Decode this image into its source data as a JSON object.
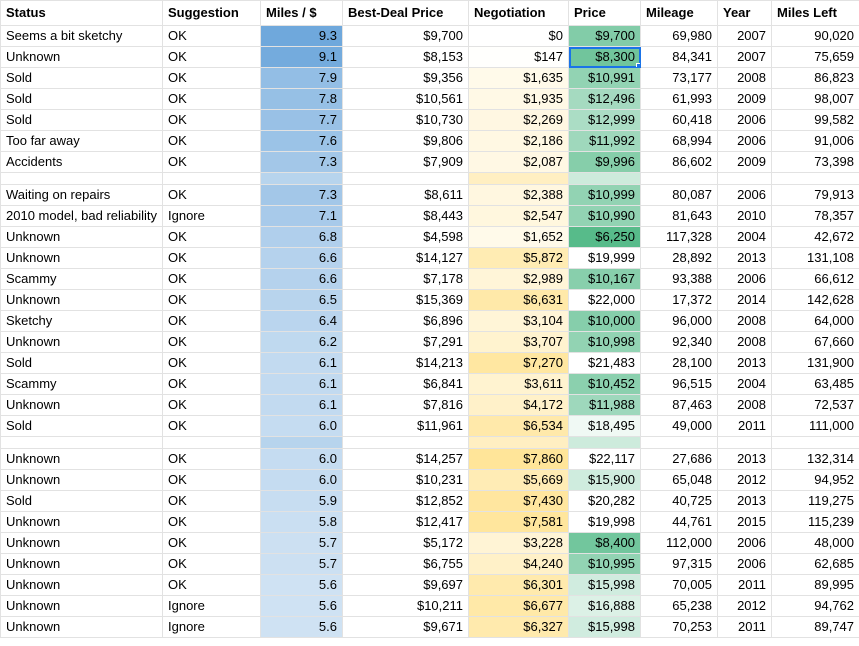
{
  "colors": {
    "mps_scale": [
      "#6fa8dc",
      "#cfe2f3"
    ],
    "neg_scale": [
      "#ffffff",
      "#ffe599"
    ],
    "price_scale": [
      "#57bb8a",
      "#ffffff"
    ],
    "selection": "#1a73e8"
  },
  "headers": [
    "Status",
    "Suggestion",
    "Miles / $",
    "Best-Deal Price",
    "Negotiation",
    "Price",
    "Mileage",
    "Year",
    "Miles Left"
  ],
  "rows": [
    {
      "status": "Seems a bit sketchy",
      "suggestion": "OK",
      "mps": "9.3",
      "best": "$9,700",
      "neg": "$0",
      "price": "$9,700",
      "mileage": "69,980",
      "year": "2007",
      "left": "90,020"
    },
    {
      "status": "Unknown",
      "suggestion": "OK",
      "mps": "9.1",
      "best": "$8,153",
      "neg": "$147",
      "price": "$8,300",
      "mileage": "84,341",
      "year": "2007",
      "left": "75,659"
    },
    {
      "status": "Sold",
      "suggestion": "OK",
      "mps": "7.9",
      "best": "$9,356",
      "neg": "$1,635",
      "price": "$10,991",
      "mileage": "73,177",
      "year": "2008",
      "left": "86,823"
    },
    {
      "status": "Sold",
      "suggestion": "OK",
      "mps": "7.8",
      "best": "$10,561",
      "neg": "$1,935",
      "price": "$12,496",
      "mileage": "61,993",
      "year": "2009",
      "left": "98,007"
    },
    {
      "status": "Sold",
      "suggestion": "OK",
      "mps": "7.7",
      "best": "$10,730",
      "neg": "$2,269",
      "price": "$12,999",
      "mileage": "60,418",
      "year": "2006",
      "left": "99,582"
    },
    {
      "status": "Too far away",
      "suggestion": "OK",
      "mps": "7.6",
      "best": "$9,806",
      "neg": "$2,186",
      "price": "$11,992",
      "mileage": "68,994",
      "year": "2006",
      "left": "91,006"
    },
    {
      "status": "Accidents",
      "suggestion": "OK",
      "mps": "7.3",
      "best": "$7,909",
      "neg": "$2,087",
      "price": "$9,996",
      "mileage": "86,602",
      "year": "2009",
      "left": "73,398"
    },
    {
      "spacer": true
    },
    {
      "status": "Waiting on repairs",
      "suggestion": "OK",
      "mps": "7.3",
      "best": "$8,611",
      "neg": "$2,388",
      "price": "$10,999",
      "mileage": "80,087",
      "year": "2006",
      "left": "79,913"
    },
    {
      "status": "2010 model, bad reliability",
      "suggestion": "Ignore",
      "mps": "7.1",
      "best": "$8,443",
      "neg": "$2,547",
      "price": "$10,990",
      "mileage": "81,643",
      "year": "2010",
      "left": "78,357"
    },
    {
      "status": "Unknown",
      "suggestion": "OK",
      "mps": "6.8",
      "best": "$4,598",
      "neg": "$1,652",
      "price": "$6,250",
      "mileage": "117,328",
      "year": "2004",
      "left": "42,672"
    },
    {
      "status": "Unknown",
      "suggestion": "OK",
      "mps": "6.6",
      "best": "$14,127",
      "neg": "$5,872",
      "price": "$19,999",
      "mileage": "28,892",
      "year": "2013",
      "left": "131,108"
    },
    {
      "status": "Scammy",
      "suggestion": "OK",
      "mps": "6.6",
      "best": "$7,178",
      "neg": "$2,989",
      "price": "$10,167",
      "mileage": "93,388",
      "year": "2006",
      "left": "66,612"
    },
    {
      "status": "Unknown",
      "suggestion": "OK",
      "mps": "6.5",
      "best": "$15,369",
      "neg": "$6,631",
      "price": "$22,000",
      "mileage": "17,372",
      "year": "2014",
      "left": "142,628"
    },
    {
      "status": "Sketchy",
      "suggestion": "OK",
      "mps": "6.4",
      "best": "$6,896",
      "neg": "$3,104",
      "price": "$10,000",
      "mileage": "96,000",
      "year": "2008",
      "left": "64,000"
    },
    {
      "status": "Unknown",
      "suggestion": "OK",
      "mps": "6.2",
      "best": "$7,291",
      "neg": "$3,707",
      "price": "$10,998",
      "mileage": "92,340",
      "year": "2008",
      "left": "67,660"
    },
    {
      "status": "Sold",
      "suggestion": "OK",
      "mps": "6.1",
      "best": "$14,213",
      "neg": "$7,270",
      "price": "$21,483",
      "mileage": "28,100",
      "year": "2013",
      "left": "131,900"
    },
    {
      "status": "Scammy",
      "suggestion": "OK",
      "mps": "6.1",
      "best": "$6,841",
      "neg": "$3,611",
      "price": "$10,452",
      "mileage": "96,515",
      "year": "2004",
      "left": "63,485"
    },
    {
      "status": "Unknown",
      "suggestion": "OK",
      "mps": "6.1",
      "best": "$7,816",
      "neg": "$4,172",
      "price": "$11,988",
      "mileage": "87,463",
      "year": "2008",
      "left": "72,537"
    },
    {
      "status": "Sold",
      "suggestion": "OK",
      "mps": "6.0",
      "best": "$11,961",
      "neg": "$6,534",
      "price": "$18,495",
      "mileage": "49,000",
      "year": "2011",
      "left": "111,000"
    },
    {
      "spacer": true
    },
    {
      "status": "Unknown",
      "suggestion": "OK",
      "mps": "6.0",
      "best": "$14,257",
      "neg": "$7,860",
      "price": "$22,117",
      "mileage": "27,686",
      "year": "2013",
      "left": "132,314"
    },
    {
      "status": "Unknown",
      "suggestion": "OK",
      "mps": "6.0",
      "best": "$10,231",
      "neg": "$5,669",
      "price": "$15,900",
      "mileage": "65,048",
      "year": "2012",
      "left": "94,952"
    },
    {
      "status": "Sold",
      "suggestion": "OK",
      "mps": "5.9",
      "best": "$12,852",
      "neg": "$7,430",
      "price": "$20,282",
      "mileage": "40,725",
      "year": "2013",
      "left": "119,275"
    },
    {
      "status": "Unknown",
      "suggestion": "OK",
      "mps": "5.8",
      "best": "$12,417",
      "neg": "$7,581",
      "price": "$19,998",
      "mileage": "44,761",
      "year": "2015",
      "left": "115,239"
    },
    {
      "status": "Unknown",
      "suggestion": "OK",
      "mps": "5.7",
      "best": "$5,172",
      "neg": "$3,228",
      "price": "$8,400",
      "mileage": "112,000",
      "year": "2006",
      "left": "48,000"
    },
    {
      "status": "Unknown",
      "suggestion": "OK",
      "mps": "5.7",
      "best": "$6,755",
      "neg": "$4,240",
      "price": "$10,995",
      "mileage": "97,315",
      "year": "2006",
      "left": "62,685"
    },
    {
      "status": "Unknown",
      "suggestion": "OK",
      "mps": "5.6",
      "best": "$9,697",
      "neg": "$6,301",
      "price": "$15,998",
      "mileage": "70,005",
      "year": "2011",
      "left": "89,995"
    },
    {
      "status": "Unknown",
      "suggestion": "Ignore",
      "mps": "5.6",
      "best": "$10,211",
      "neg": "$6,677",
      "price": "$16,888",
      "mileage": "65,238",
      "year": "2012",
      "left": "94,762"
    },
    {
      "status": "Unknown",
      "suggestion": "Ignore",
      "mps": "5.6",
      "best": "$9,671",
      "neg": "$6,327",
      "price": "$15,998",
      "mileage": "70,253",
      "year": "2011",
      "left": "89,747"
    }
  ]
}
